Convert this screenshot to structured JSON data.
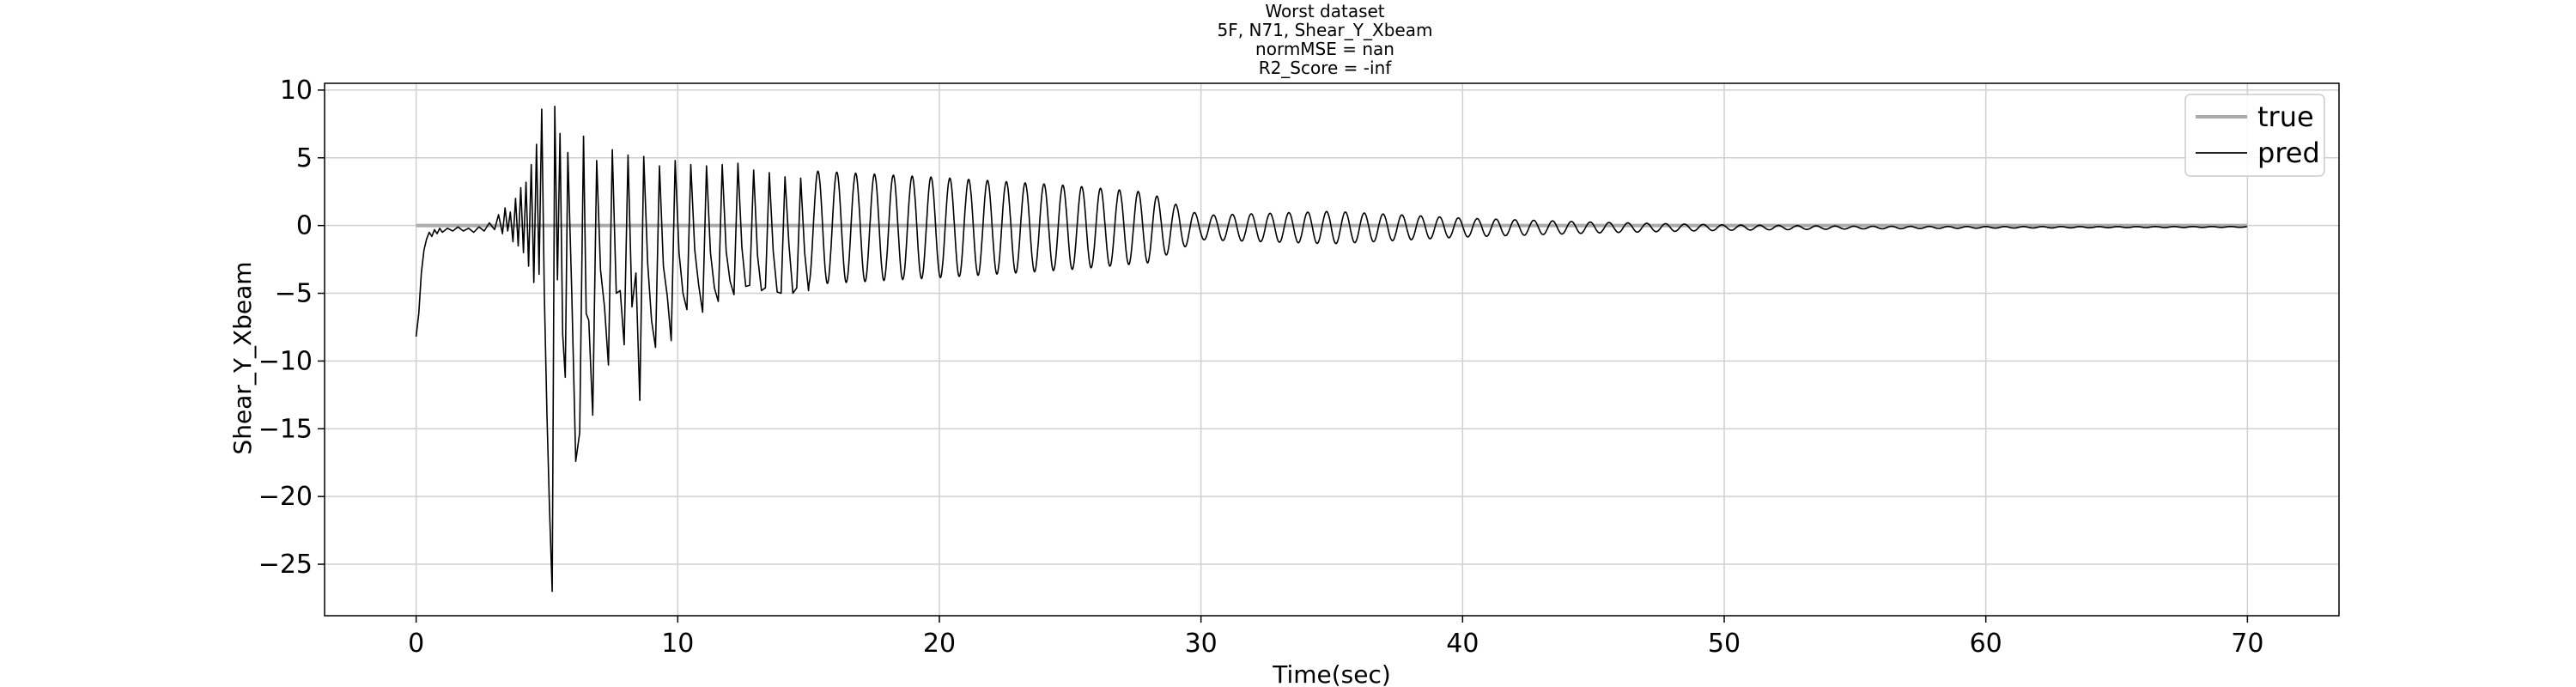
{
  "chart_data": {
    "type": "line",
    "title_lines": [
      "Worst dataset",
      "5F, N71, Shear_Y_Xbeam",
      "normMSE = nan",
      "R2_Score = -inf"
    ],
    "xlabel": "Time(sec)",
    "ylabel": "Shear_Y_Xbeam",
    "xlim": [
      -3.5,
      73.5
    ],
    "ylim": [
      -28.8,
      10.5
    ],
    "xticks": [
      0,
      10,
      20,
      30,
      40,
      50,
      60,
      70
    ],
    "yticks": [
      10,
      5,
      0,
      -5,
      -10,
      -15,
      -20,
      -25
    ],
    "ytick_labels": [
      "10",
      "5",
      "0",
      "−5",
      "−10",
      "−15",
      "−20",
      "−25"
    ],
    "grid": true,
    "legend_position": "top-right",
    "series": [
      {
        "name": "true",
        "color": "#aaaaaa",
        "x": [
          0,
          70
        ],
        "y": [
          0,
          0
        ]
      },
      {
        "name": "pred",
        "color": "#000000",
        "x": [
          0.0,
          0.1,
          0.2,
          0.3,
          0.4,
          0.5,
          0.6,
          0.7,
          0.8,
          0.9,
          1.0,
          1.2,
          1.4,
          1.6,
          1.8,
          2.0,
          2.2,
          2.4,
          2.6,
          2.8,
          3.0,
          3.15,
          3.3,
          3.4,
          3.5,
          3.6,
          3.7,
          3.8,
          3.9,
          4.0,
          4.1,
          4.2,
          4.3,
          4.4,
          4.5,
          4.6,
          4.7,
          4.8,
          4.9,
          5.0,
          5.1,
          5.2,
          5.3,
          5.4,
          5.5,
          5.6,
          5.7,
          5.8,
          5.95,
          6.1,
          6.25,
          6.4,
          6.5,
          6.6,
          6.75,
          6.9,
          7.05,
          7.2,
          7.35,
          7.5,
          7.65,
          7.8,
          7.95,
          8.1,
          8.25,
          8.4,
          8.55,
          8.7,
          8.85,
          9.0,
          9.15,
          9.3,
          9.45,
          9.6,
          9.75,
          9.9,
          10.05,
          10.2,
          10.35,
          10.5,
          10.65,
          10.8,
          10.95,
          11.1,
          11.25,
          11.4,
          11.55,
          11.7,
          11.85,
          12.0,
          12.15,
          12.3,
          12.45,
          12.6,
          12.75,
          12.9,
          13.05,
          13.2,
          13.35,
          13.5,
          13.65,
          13.8,
          13.95,
          14.1,
          14.25,
          14.4,
          14.55,
          14.7,
          14.85,
          15.0
        ],
        "y": [
          -8.2,
          -6.5,
          -3.5,
          -1.8,
          -1.0,
          -0.5,
          -0.8,
          -0.3,
          -0.6,
          -0.2,
          -0.5,
          -0.2,
          -0.4,
          -0.1,
          -0.4,
          -0.2,
          -0.5,
          -0.1,
          -0.4,
          0.2,
          -0.3,
          0.8,
          -0.6,
          1.3,
          -0.4,
          1.0,
          -1.2,
          2.0,
          -1.5,
          2.8,
          -2.0,
          3.2,
          -3.0,
          4.5,
          -4.2,
          6.0,
          -3.6,
          8.6,
          -5.0,
          -14.0,
          -21.0,
          -27.0,
          8.8,
          -4.0,
          6.8,
          -8.0,
          -11.2,
          5.4,
          -5.0,
          -17.4,
          -15.3,
          6.6,
          -6.5,
          -7.0,
          -14.0,
          4.8,
          -3.3,
          -6.0,
          -10.3,
          5.6,
          -5.0,
          -4.8,
          -8.8,
          5.2,
          -6.0,
          -3.5,
          -12.9,
          5.1,
          -2.8,
          -7.0,
          -9.0,
          4.4,
          -3.0,
          -5.2,
          -8.5,
          4.8,
          -2.0,
          -5.0,
          -6.2,
          4.5,
          -1.8,
          -4.4,
          -6.4,
          4.4,
          -2.0,
          -4.6,
          -5.6,
          4.5,
          -1.9,
          -4.1,
          -5.1,
          4.6,
          -1.6,
          -4.5,
          -4.4,
          4.1,
          -2.2,
          -4.8,
          -4.6,
          3.9,
          -1.9,
          -4.9,
          -5.0,
          3.6,
          -1.4,
          -5.0,
          -4.6,
          3.5,
          -2.0,
          -4.8
        ]
      }
    ],
    "oscillation": {
      "start": 15.0,
      "end": 70.0,
      "period": 0.72,
      "offset": -0.15,
      "envelope_x": [
        15,
        20,
        25,
        28,
        30,
        35,
        40,
        45,
        50,
        55,
        60,
        65,
        70
      ],
      "envelope_amp": [
        4.2,
        3.7,
        3.1,
        2.6,
        0.9,
        1.2,
        0.7,
        0.4,
        0.2,
        0.1,
        0.06,
        0.04,
        0.03
      ],
      "end_value": -0.1
    },
    "legend": {
      "entries": [
        "true",
        "pred"
      ]
    }
  }
}
